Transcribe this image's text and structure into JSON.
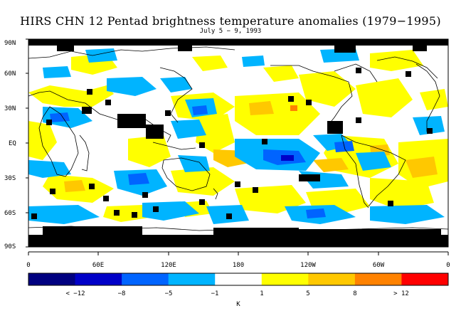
{
  "title": "HIRS CHN 12 Pentad brightness temperature anomalies (1979−1995)",
  "subtitle": "July 5 − 9, 1993",
  "lat_labels": [
    "90N",
    "60N",
    "30N",
    "EQ",
    "30S",
    "60S",
    "90S"
  ],
  "lon_labels": [
    "0",
    "60E",
    "120E",
    "180",
    "120W",
    "60W",
    "0"
  ],
  "legend": {
    "unit": "K",
    "labels": [
      "< −12",
      "−8",
      "−5",
      "−1",
      "1",
      "5",
      "8",
      "> 12"
    ],
    "colors": [
      "#000080",
      "#0000c8",
      "#0064ff",
      "#00b4ff",
      "#ffffff",
      "#ffff00",
      "#ffc800",
      "#ff8200",
      "#ff0000"
    ]
  },
  "palette": {
    "no_data": "#000000",
    "coast": "#000000"
  }
}
